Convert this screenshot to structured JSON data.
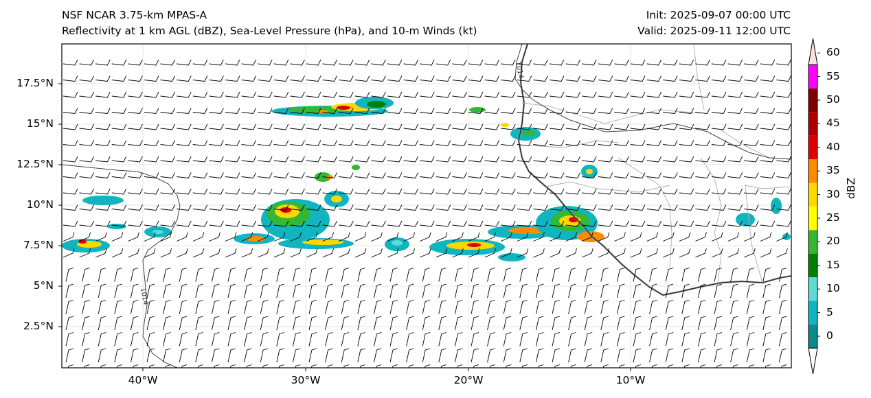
{
  "titles": {
    "left_line1": "NSF NCAR 3.75-km MPAS-A",
    "left_line2": "Reflectivity at 1 km AGL (dBZ), Sea-Level Pressure (hPa), and 10-m Winds (kt)",
    "right_line1": "Init: 2025-09-07 00:00 UTC",
    "right_line2": "Valid: 2025-09-11 12:00 UTC"
  },
  "map": {
    "lon_ticks": [
      "40°W",
      "30°W",
      "20°W",
      "10°W"
    ],
    "lat_ticks": [
      "17.5°N",
      "15°N",
      "12.5°N",
      "10°N",
      "7.5°N",
      "5°N",
      "2.5°N"
    ],
    "isobar_labels": [
      "1014",
      "1014"
    ],
    "colors": {
      "land_boundary": "#1a1a1a",
      "border": "#aaaaaa",
      "isobar": "#444444",
      "coast_grey": "#888888",
      "wind_barb": "#000000"
    }
  },
  "colorbar": {
    "label": "dBZ",
    "ticks": [
      "0",
      "5",
      "10",
      "15",
      "20",
      "25",
      "30",
      "35",
      "40",
      "45",
      "50",
      "55",
      "60"
    ],
    "colors": [
      "#0b8a8a",
      "#10b5c0",
      "#5ddcd5",
      "#008000",
      "#33b833",
      "#ffff00",
      "#ffd700",
      "#ff8c00",
      "#e00000",
      "#b00000",
      "#800000",
      "#ff00ff",
      "#ffe0e0"
    ]
  }
}
